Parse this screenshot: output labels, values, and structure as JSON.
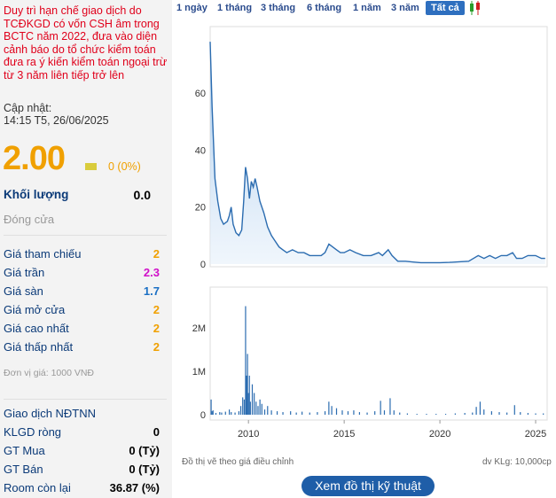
{
  "warning": "Duy trì hạn chế giao dịch do TCĐKGD có vốn CSH âm trong BCTC năm 2022, đưa vào diện cảnh báo do tổ chức kiểm toán đưa ra ý kiến kiểm toán ngoại trừ từ 3 năm liên tiếp trở lên",
  "updated_label": "Cập nhật:",
  "updated_time": "14:15 T5, 26/06/2025",
  "price": "2.00",
  "change": "0 (0%)",
  "volume_label": "Khối lượng",
  "volume_value": "0.0",
  "status": "Đóng cửa",
  "stats": [
    {
      "label": "Giá tham chiếu",
      "value": "2",
      "color": "#f0a000"
    },
    {
      "label": "Giá trần",
      "value": "2.3",
      "color": "#d010c8"
    },
    {
      "label": "Giá sàn",
      "value": "1.7",
      "color": "#1a6fc4"
    },
    {
      "label": "Giá mở cửa",
      "value": "2",
      "color": "#f0a000"
    },
    {
      "label": "Giá cao nhất",
      "value": "2",
      "color": "#f0a000"
    },
    {
      "label": "Giá thấp nhất",
      "value": "2",
      "color": "#f0a000"
    }
  ],
  "unit": "Đơn vị giá: 1000 VNĐ",
  "foreign_title": "Giao dịch NĐTNN",
  "foreign": [
    {
      "label": "KLGD ròng",
      "value": "0"
    },
    {
      "label": "GT Mua",
      "value": "0 (Tỷ)"
    },
    {
      "label": "GT Bán",
      "value": "0 (Tỷ)"
    },
    {
      "label": "Room còn lại",
      "value": "36.87 (%)"
    }
  ],
  "tabs": [
    "1 ngày",
    "1 tháng",
    "3 tháng",
    "6 tháng",
    "1 năm",
    "3 năm",
    "Tất cả"
  ],
  "active_tab": "Tất cả",
  "chart_data": {
    "type": "area",
    "price_axis_ticks": [
      "60",
      "40",
      "20",
      "0"
    ],
    "volume_axis_ticks": [
      "2M",
      "1M",
      "0"
    ],
    "x_ticks": [
      "2010",
      "2015",
      "2020",
      "2025"
    ],
    "price_series": [
      [
        2008.0,
        78
      ],
      [
        2008.1,
        55
      ],
      [
        2008.25,
        30
      ],
      [
        2008.4,
        22
      ],
      [
        2008.55,
        16
      ],
      [
        2008.7,
        14
      ],
      [
        2008.9,
        15
      ],
      [
        2009.0,
        17
      ],
      [
        2009.1,
        20
      ],
      [
        2009.2,
        14
      ],
      [
        2009.35,
        11
      ],
      [
        2009.5,
        10
      ],
      [
        2009.65,
        12
      ],
      [
        2009.75,
        22
      ],
      [
        2009.85,
        34
      ],
      [
        2009.95,
        30
      ],
      [
        2010.05,
        23
      ],
      [
        2010.15,
        29
      ],
      [
        2010.25,
        27
      ],
      [
        2010.35,
        30
      ],
      [
        2010.45,
        27
      ],
      [
        2010.6,
        22
      ],
      [
        2010.8,
        18
      ],
      [
        2011.0,
        13
      ],
      [
        2011.2,
        10
      ],
      [
        2011.4,
        8
      ],
      [
        2011.6,
        6
      ],
      [
        2011.8,
        5
      ],
      [
        2012.0,
        4
      ],
      [
        2012.3,
        5
      ],
      [
        2012.6,
        4
      ],
      [
        2012.9,
        4
      ],
      [
        2013.2,
        3
      ],
      [
        2013.5,
        3
      ],
      [
        2013.8,
        3
      ],
      [
        2014.0,
        4
      ],
      [
        2014.2,
        7
      ],
      [
        2014.4,
        6
      ],
      [
        2014.6,
        5
      ],
      [
        2014.8,
        4
      ],
      [
        2015.0,
        4
      ],
      [
        2015.3,
        5
      ],
      [
        2015.6,
        4
      ],
      [
        2016.0,
        3
      ],
      [
        2016.4,
        3
      ],
      [
        2016.8,
        4
      ],
      [
        2017.0,
        3
      ],
      [
        2017.3,
        5
      ],
      [
        2017.5,
        3
      ],
      [
        2017.8,
        1
      ],
      [
        2018.2,
        1
      ],
      [
        2018.6,
        0.7
      ],
      [
        2019.0,
        0.5
      ],
      [
        2019.5,
        0.5
      ],
      [
        2020.0,
        0.5
      ],
      [
        2020.5,
        0.6
      ],
      [
        2021.0,
        0.8
      ],
      [
        2021.5,
        1
      ],
      [
        2022.0,
        3
      ],
      [
        2022.3,
        2
      ],
      [
        2022.6,
        3
      ],
      [
        2022.9,
        2
      ],
      [
        2023.2,
        3
      ],
      [
        2023.5,
        3
      ],
      [
        2023.8,
        4
      ],
      [
        2024.0,
        2
      ],
      [
        2024.3,
        2
      ],
      [
        2024.6,
        3
      ],
      [
        2025.0,
        3
      ],
      [
        2025.3,
        2
      ],
      [
        2025.5,
        2
      ]
    ],
    "volume_series": [
      [
        2008.05,
        0.35
      ],
      [
        2008.1,
        0.08
      ],
      [
        2008.15,
        0.1
      ],
      [
        2008.3,
        0.04
      ],
      [
        2008.5,
        0.06
      ],
      [
        2008.6,
        0.05
      ],
      [
        2008.8,
        0.07
      ],
      [
        2009.0,
        0.12
      ],
      [
        2009.1,
        0.06
      ],
      [
        2009.3,
        0.05
      ],
      [
        2009.5,
        0.08
      ],
      [
        2009.6,
        0.2
      ],
      [
        2009.7,
        0.4
      ],
      [
        2009.78,
        0.35
      ],
      [
        2009.85,
        2.5
      ],
      [
        2009.9,
        0.9
      ],
      [
        2009.95,
        1.4
      ],
      [
        2010.0,
        0.5
      ],
      [
        2010.05,
        0.9
      ],
      [
        2010.1,
        0.3
      ],
      [
        2010.2,
        0.7
      ],
      [
        2010.3,
        0.5
      ],
      [
        2010.4,
        0.3
      ],
      [
        2010.5,
        0.2
      ],
      [
        2010.6,
        0.35
      ],
      [
        2010.7,
        0.25
      ],
      [
        2010.85,
        0.12
      ],
      [
        2011.0,
        0.2
      ],
      [
        2011.2,
        0.1
      ],
      [
        2011.5,
        0.08
      ],
      [
        2011.8,
        0.06
      ],
      [
        2012.2,
        0.08
      ],
      [
        2012.5,
        0.05
      ],
      [
        2012.8,
        0.07
      ],
      [
        2013.2,
        0.05
      ],
      [
        2013.6,
        0.06
      ],
      [
        2014.0,
        0.08
      ],
      [
        2014.2,
        0.3
      ],
      [
        2014.35,
        0.2
      ],
      [
        2014.6,
        0.15
      ],
      [
        2014.9,
        0.1
      ],
      [
        2015.2,
        0.08
      ],
      [
        2015.5,
        0.1
      ],
      [
        2015.8,
        0.06
      ],
      [
        2016.2,
        0.05
      ],
      [
        2016.6,
        0.08
      ],
      [
        2016.9,
        0.32
      ],
      [
        2017.1,
        0.1
      ],
      [
        2017.4,
        0.38
      ],
      [
        2017.6,
        0.1
      ],
      [
        2017.9,
        0.05
      ],
      [
        2018.3,
        0.03
      ],
      [
        2018.8,
        0.02
      ],
      [
        2019.3,
        0.02
      ],
      [
        2019.8,
        0.02
      ],
      [
        2020.3,
        0.02
      ],
      [
        2020.8,
        0.03
      ],
      [
        2021.3,
        0.04
      ],
      [
        2021.7,
        0.05
      ],
      [
        2021.9,
        0.18
      ],
      [
        2022.1,
        0.3
      ],
      [
        2022.3,
        0.12
      ],
      [
        2022.7,
        0.08
      ],
      [
        2023.1,
        0.06
      ],
      [
        2023.5,
        0.05
      ],
      [
        2023.9,
        0.22
      ],
      [
        2024.2,
        0.06
      ],
      [
        2024.6,
        0.04
      ],
      [
        2025.0,
        0.03
      ],
      [
        2025.4,
        0.03
      ]
    ],
    "footnote_left": "Đồ thị vẽ theo giá điều chỉnh",
    "footnote_right": "dv KLg: 10,000cp"
  },
  "technical_button": "Xem đồ thị kỹ thuật"
}
